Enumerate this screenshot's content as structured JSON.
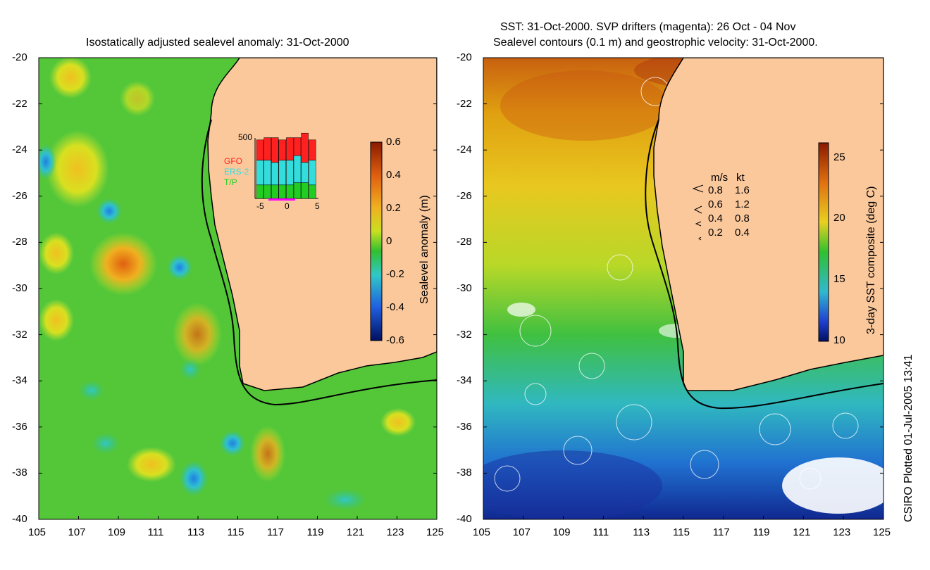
{
  "left_panel": {
    "title": "Isostatically adjusted sealevel anomaly: 31-Oct-2000",
    "colorbar": {
      "label": "Sealevel anomaly (m)",
      "ticks": [
        "0.6",
        "0.4",
        "0.2",
        "0",
        "-0.2",
        "-0.4",
        "-0.6"
      ]
    },
    "inset": {
      "ymax_label": "500",
      "legend": [
        {
          "name": "GFO",
          "color": "#ff2020"
        },
        {
          "name": "ERS-2",
          "color": "#33dddd"
        },
        {
          "name": "T/P",
          "color": "#22cc22"
        }
      ],
      "xticks": [
        "-5",
        "0",
        "5"
      ],
      "bars": [
        {
          "gfo": 0.18,
          "ers": 0.22,
          "tp": 0.12
        },
        {
          "gfo": 0.2,
          "ers": 0.22,
          "tp": 0.12
        },
        {
          "gfo": 0.22,
          "ers": 0.2,
          "tp": 0.12
        },
        {
          "gfo": 0.18,
          "ers": 0.22,
          "tp": 0.12
        },
        {
          "gfo": 0.2,
          "ers": 0.22,
          "tp": 0.12
        },
        {
          "gfo": 0.16,
          "ers": 0.24,
          "tp": 0.14
        },
        {
          "gfo": 0.26,
          "ers": 0.18,
          "tp": 0.14
        },
        {
          "gfo": 0.18,
          "ers": 0.22,
          "tp": 0.12
        }
      ]
    }
  },
  "right_panel": {
    "title_line1": "SST: 31-Oct-2000. SVP drifters (magenta): 26 Oct - 04 Nov",
    "title_line2": "Sealevel contours (0.1 m) and geostrophic velocity: 31-Oct-2000.",
    "colorbar": {
      "label": "3-day SST composite (deg C)",
      "ticks": [
        "25",
        "20",
        "15",
        "10"
      ]
    },
    "speed_legend": {
      "header_ms": "m/s",
      "header_kt": "kt",
      "rows": [
        {
          "ms": "0.8",
          "kt": "1.6"
        },
        {
          "ms": "0.6",
          "kt": "1.2"
        },
        {
          "ms": "0.4",
          "kt": "0.8"
        },
        {
          "ms": "0.2",
          "kt": "0.4"
        }
      ]
    }
  },
  "axes": {
    "yticks": [
      "-20",
      "-22",
      "-24",
      "-26",
      "-28",
      "-30",
      "-32",
      "-34",
      "-36",
      "-38",
      "-40"
    ],
    "xticks": [
      "105",
      "107",
      "109",
      "111",
      "113",
      "115",
      "117",
      "119",
      "121",
      "123",
      "125"
    ]
  },
  "credit": "CSIRO Plotted 01-Jul-2005 13:41",
  "colors": {
    "land": "#fbc89c",
    "sla_ocean": "#3cc23c",
    "sst_warm": "#e0a000"
  }
}
